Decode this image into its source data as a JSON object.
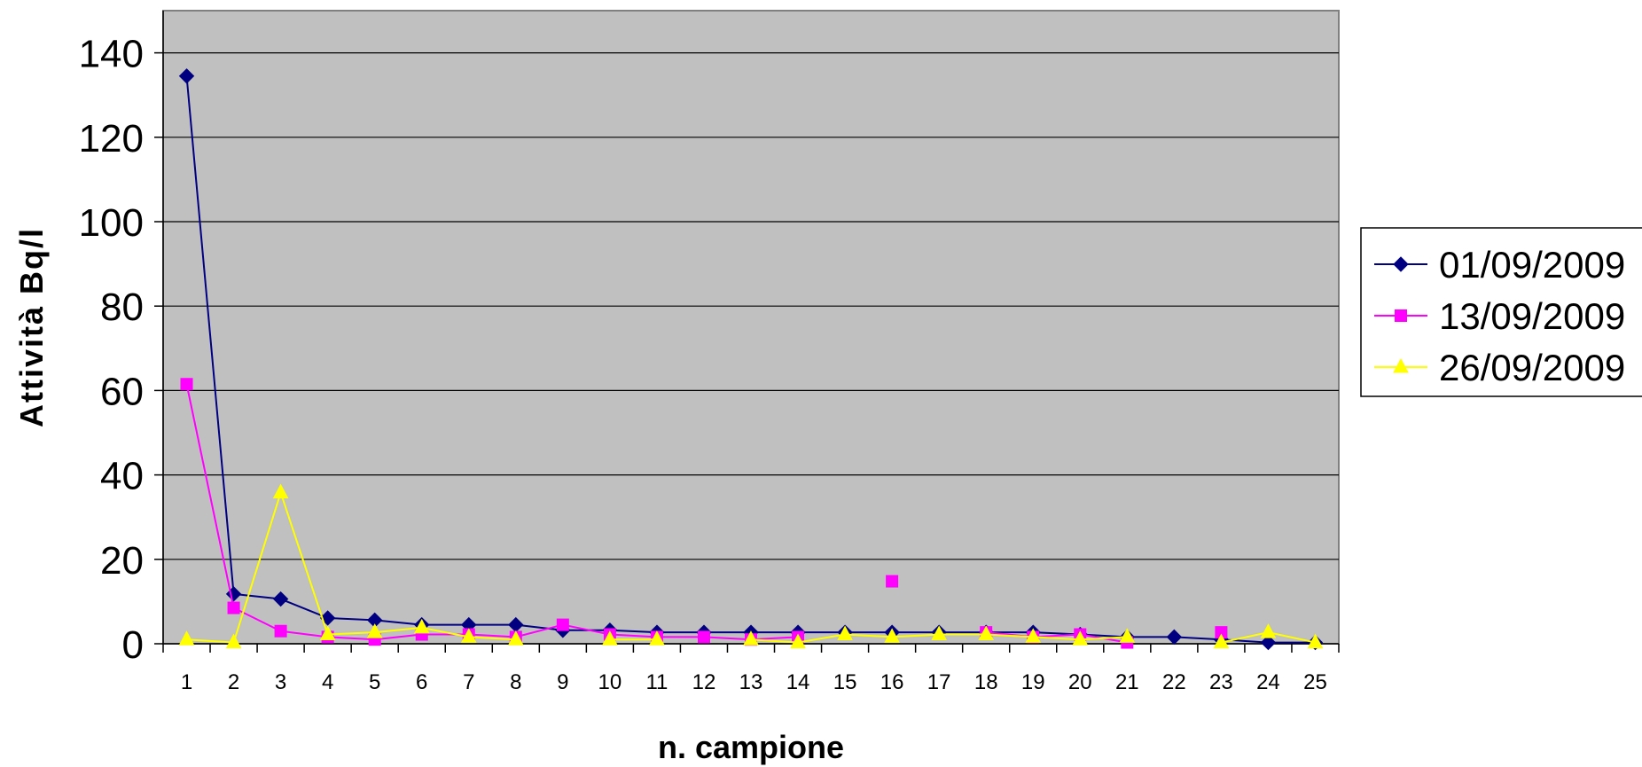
{
  "chart_data": {
    "type": "line",
    "title": "",
    "xlabel": "n. campione",
    "ylabel": "Attività Bq/l",
    "x": [
      "1",
      "2",
      "3",
      "4",
      "5",
      "6",
      "7",
      "8",
      "9",
      "10",
      "11",
      "12",
      "13",
      "14",
      "15",
      "16",
      "17",
      "18",
      "19",
      "20",
      "21",
      "22",
      "23",
      "24",
      "25"
    ],
    "ylim": [
      0,
      150
    ],
    "yticks": [
      0,
      20,
      40,
      60,
      80,
      100,
      120,
      140
    ],
    "grid": true,
    "plot_background": "#c0c0c0",
    "legend_position": "right",
    "series": [
      {
        "name": "01/09/2009",
        "color": "#000080",
        "marker": "diamond",
        "values": [
          134.5,
          11.8,
          10.6,
          6.1,
          5.6,
          4.5,
          4.5,
          4.5,
          3.2,
          3.2,
          2.7,
          2.7,
          2.7,
          2.7,
          2.7,
          2.7,
          2.7,
          2.7,
          2.7,
          2.2,
          1.6,
          1.6,
          1.0,
          0.3,
          0.3
        ]
      },
      {
        "name": "13/09/2009",
        "color": "#ff00ff",
        "marker": "square",
        "values": [
          61.5,
          8.5,
          3.0,
          1.6,
          1.0,
          2.2,
          2.2,
          1.6,
          4.5,
          2.2,
          1.6,
          1.6,
          1.0,
          1.6,
          null,
          14.8,
          null,
          2.7,
          1.6,
          2.2,
          0.3,
          null,
          2.7,
          null,
          null
        ]
      },
      {
        "name": "26/09/2009",
        "color": "#ffff00",
        "marker": "triangle",
        "values": [
          1.0,
          0.3,
          35.8,
          2.2,
          2.7,
          3.8,
          1.6,
          1.0,
          null,
          1.0,
          1.0,
          null,
          1.0,
          0.3,
          2.2,
          1.6,
          2.2,
          2.2,
          1.6,
          1.0,
          1.6,
          null,
          0.3,
          2.7,
          0.3
        ]
      }
    ]
  }
}
